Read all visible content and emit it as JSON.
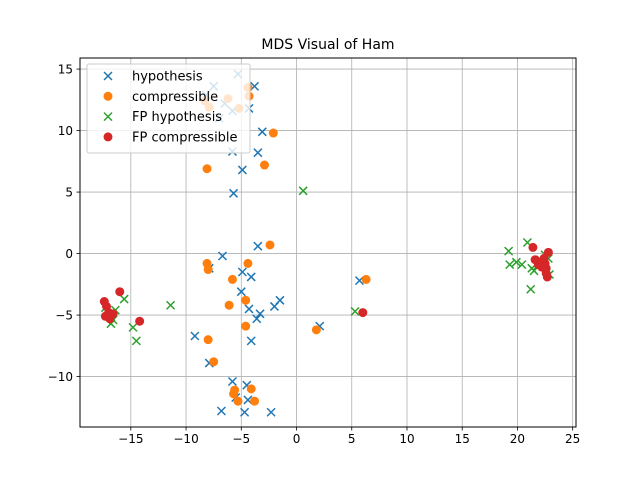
{
  "chart_data": {
    "type": "scatter",
    "title": "MDS Visual of Ham",
    "xlabel": "",
    "ylabel": "",
    "xlim": [
      -19.6,
      25.3
    ],
    "ylim": [
      -14.1,
      15.9
    ],
    "xticks": [
      -15,
      -10,
      -5,
      0,
      5,
      10,
      15,
      20,
      25
    ],
    "yticks": [
      -10,
      -5,
      0,
      5,
      10,
      15
    ],
    "xtick_labels": [
      "−15",
      "−10",
      "−5",
      "0",
      "5",
      "10",
      "15",
      "20",
      "25"
    ],
    "ytick_labels": [
      "−10",
      "−5",
      "0",
      "5",
      "10",
      "15"
    ],
    "grid": true,
    "legend_position": "top-left",
    "series": [
      {
        "name": "hypothesis",
        "marker": "x",
        "color": "#1f77b4",
        "points": [
          [
            -7.5,
            13.6
          ],
          [
            -8.2,
            12.9
          ],
          [
            -5.3,
            14.6
          ],
          [
            -3.8,
            13.6
          ],
          [
            -4.3,
            11.8
          ],
          [
            -6.5,
            12.2
          ],
          [
            -7.0,
            11.0
          ],
          [
            -5.8,
            11.6
          ],
          [
            -3.1,
            9.9
          ],
          [
            -3.5,
            8.2
          ],
          [
            -5.8,
            8.3
          ],
          [
            -4.9,
            6.8
          ],
          [
            -5.7,
            4.9
          ],
          [
            -6.7,
            -0.2
          ],
          [
            -7.9,
            -1.2
          ],
          [
            -3.5,
            0.6
          ],
          [
            -4.1,
            -1.9
          ],
          [
            -4.9,
            -1.5
          ],
          [
            -5.0,
            -3.1
          ],
          [
            -4.3,
            -4.5
          ],
          [
            -3.6,
            -5.3
          ],
          [
            -3.3,
            -4.9
          ],
          [
            -1.5,
            -3.8
          ],
          [
            -2.0,
            -4.3
          ],
          [
            -4.1,
            -7.1
          ],
          [
            -9.2,
            -6.7
          ],
          [
            -7.9,
            -8.9
          ],
          [
            -5.8,
            -10.4
          ],
          [
            -4.5,
            -10.7
          ],
          [
            -5.5,
            -11.7
          ],
          [
            -4.4,
            -11.9
          ],
          [
            -6.8,
            -12.8
          ],
          [
            -4.7,
            -12.9
          ],
          [
            -2.3,
            -12.9
          ],
          [
            2.1,
            -5.9
          ],
          [
            5.7,
            -2.2
          ]
        ]
      },
      {
        "name": "compressible",
        "marker": "o",
        "color": "#ff7f0e",
        "points": [
          [
            -8.3,
            12.4
          ],
          [
            -7.9,
            11.9
          ],
          [
            -6.2,
            12.6
          ],
          [
            -4.4,
            13.5
          ],
          [
            -4.3,
            12.8
          ],
          [
            -5.2,
            11.8
          ],
          [
            -2.1,
            9.8
          ],
          [
            -2.9,
            7.2
          ],
          [
            -8.1,
            6.9
          ],
          [
            -2.4,
            0.7
          ],
          [
            -8.1,
            -0.8
          ],
          [
            -8.0,
            -1.3
          ],
          [
            -5.8,
            -2.1
          ],
          [
            -4.4,
            -0.8
          ],
          [
            -6.1,
            -4.2
          ],
          [
            -4.6,
            -3.8
          ],
          [
            -4.6,
            -5.9
          ],
          [
            -8.0,
            -7.0
          ],
          [
            -7.5,
            -8.8
          ],
          [
            -5.6,
            -11.1
          ],
          [
            -5.7,
            -11.4
          ],
          [
            -4.1,
            -11.0
          ],
          [
            -5.3,
            -12.0
          ],
          [
            -3.8,
            -12.0
          ],
          [
            1.8,
            -6.2
          ],
          [
            6.3,
            -2.1
          ]
        ]
      },
      {
        "name": "FP hypothesis",
        "marker": "x",
        "color": "#2ca02c",
        "points": [
          [
            -17.3,
            -4.4
          ],
          [
            -16.4,
            -4.6
          ],
          [
            -16.6,
            -5.4
          ],
          [
            -16.8,
            -5.7
          ],
          [
            -15.6,
            -3.7
          ],
          [
            -14.8,
            -6.0
          ],
          [
            -14.5,
            -7.1
          ],
          [
            -11.4,
            -4.2
          ],
          [
            0.6,
            5.1
          ],
          [
            5.3,
            -4.7
          ],
          [
            19.2,
            0.2
          ],
          [
            19.3,
            -0.9
          ],
          [
            19.9,
            -0.7
          ],
          [
            20.4,
            -0.9
          ],
          [
            20.9,
            0.9
          ],
          [
            21.3,
            -1.2
          ],
          [
            21.5,
            -1.4
          ],
          [
            21.8,
            -1.0
          ],
          [
            22.1,
            -0.5
          ],
          [
            22.5,
            -0.1
          ],
          [
            22.8,
            -0.4
          ],
          [
            22.9,
            -1.7
          ],
          [
            21.2,
            -2.9
          ]
        ]
      },
      {
        "name": "FP compressible",
        "marker": "o",
        "color": "#d62728",
        "points": [
          [
            -17.4,
            -3.9
          ],
          [
            -17.2,
            -4.3
          ],
          [
            -17.0,
            -4.8
          ],
          [
            -16.8,
            -5.0
          ],
          [
            -17.3,
            -5.1
          ],
          [
            -16.9,
            -5.3
          ],
          [
            -16.6,
            -4.9
          ],
          [
            -16.0,
            -3.1
          ],
          [
            -14.2,
            -5.5
          ],
          [
            6.0,
            -4.8
          ],
          [
            21.4,
            0.5
          ],
          [
            21.6,
            -0.5
          ],
          [
            21.9,
            -0.9
          ],
          [
            22.2,
            -1.1
          ],
          [
            22.4,
            -0.4
          ],
          [
            22.6,
            -1.2
          ],
          [
            22.6,
            -1.6
          ],
          [
            22.7,
            -1.9
          ],
          [
            22.8,
            0.1
          ],
          [
            22.5,
            -0.8
          ]
        ]
      }
    ]
  }
}
